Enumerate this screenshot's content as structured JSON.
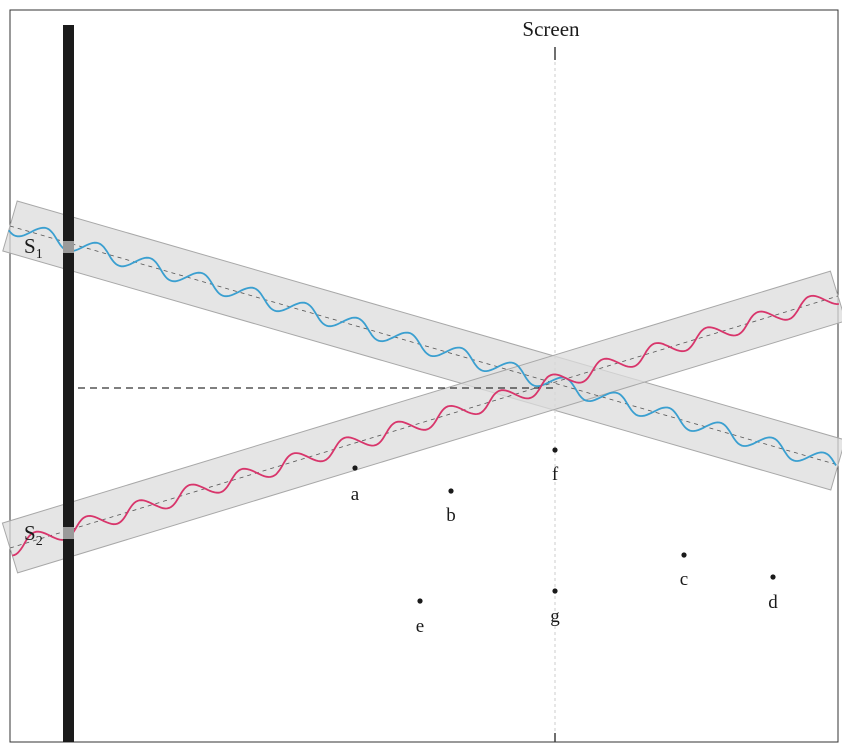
{
  "diagram": {
    "screen_label": "Screen",
    "sources": [
      {
        "id": "S1",
        "letter": "S",
        "sub": "1",
        "wave_color": "#3a9fd0"
      },
      {
        "id": "S2",
        "letter": "S",
        "sub": "2",
        "wave_color": "#d8356b"
      }
    ],
    "points": [
      {
        "id": "a",
        "label": "a"
      },
      {
        "id": "b",
        "label": "b"
      },
      {
        "id": "c",
        "label": "c"
      },
      {
        "id": "d",
        "label": "d"
      },
      {
        "id": "e",
        "label": "e"
      },
      {
        "id": "f",
        "label": "f"
      },
      {
        "id": "g",
        "label": "g"
      }
    ],
    "colors": {
      "barrier": "#1b1b1b",
      "beam_fill": "#dcdcdc",
      "beam_edge": "#a8a8a8",
      "frame": "#333333",
      "dashed_line": "#333333"
    }
  }
}
